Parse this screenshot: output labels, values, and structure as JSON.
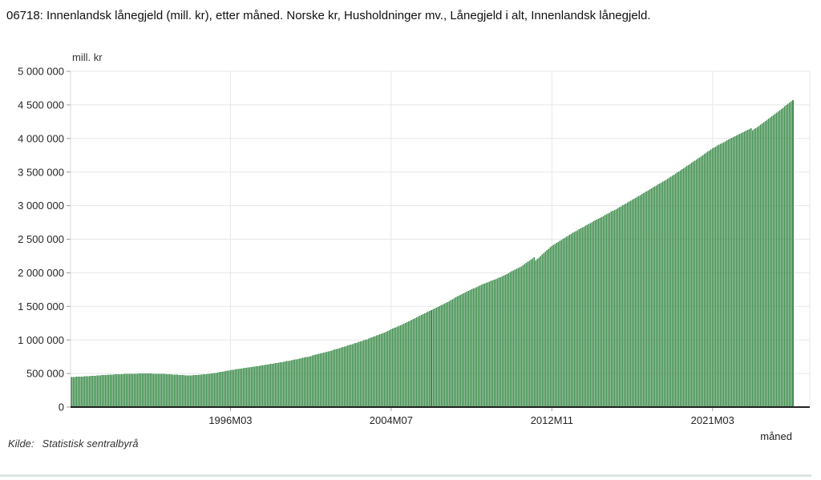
{
  "header": {
    "title": "06718: Innenlandsk lånegjeld (mill. kr), etter måned. Norske kr, Husholdninger mv., Lånegjeld i alt, Innenlandsk lånegjeld."
  },
  "footer": {
    "source_label": "Kilde:",
    "source_value": "Statistisk sentralbyrå"
  },
  "chart_data": {
    "type": "bar",
    "title": "06718: Innenlandsk lånegjeld (mill. kr), etter måned. Norske kr, Husholdninger mv., Lånegjeld i alt, Innenlandsk lånegjeld.",
    "unit_label": "mill. kr",
    "xlabel": "måned",
    "ylabel": "mill. kr",
    "ylim": [
      0,
      5000000
    ],
    "grid": true,
    "legend_position": "none",
    "bar_color": "#3c8c4b",
    "grid_color": "#e7e7e7",
    "axis_color": "#222222",
    "start_month": "1987M12",
    "end_month": "2025M05",
    "y_tick_values": [
      0,
      500000,
      1000000,
      1500000,
      2000000,
      2500000,
      3000000,
      3500000,
      4000000,
      4500000,
      5000000
    ],
    "y_tick_labels": [
      "0",
      "500 000",
      "1 000 000",
      "1 500 000",
      "2 000 000",
      "2 500 000",
      "3 000 000",
      "3 500 000",
      "4 000 000",
      "4 500 000",
      "5 000 000"
    ],
    "x_ticks": [
      {
        "label": "1996M03",
        "index": 99
      },
      {
        "label": "2004M07",
        "index": 199
      },
      {
        "label": "2012M11",
        "index": 299
      },
      {
        "label": "2021M03",
        "index": 399
      }
    ],
    "series": [
      {
        "name": "Innenlandsk lånegjeld, Husholdninger mv.",
        "values": [
          447000,
          448000,
          450000,
          451000,
          452000,
          454000,
          455000,
          456000,
          458000,
          459000,
          460000,
          462000,
          463000,
          465000,
          466000,
          468000,
          470000,
          471000,
          473000,
          475000,
          476000,
          478000,
          480000,
          481000,
          483000,
          484000,
          485000,
          487000,
          488000,
          489000,
          490000,
          491000,
          492000,
          494000,
          495000,
          496000,
          497000,
          497000,
          498000,
          498000,
          498000,
          498000,
          499000,
          499000,
          499000,
          499000,
          500000,
          500000,
          500000,
          499000,
          499000,
          498000,
          497000,
          496000,
          496000,
          495000,
          494000,
          493000,
          493000,
          492000,
          491000,
          489000,
          488000,
          486000,
          485000,
          483000,
          482000,
          480000,
          478000,
          477000,
          475000,
          474000,
          472000,
          473000,
          473000,
          474000,
          475000,
          475000,
          476000,
          479000,
          481000,
          484000,
          487000,
          489000,
          492000,
          495000,
          498000,
          501000,
          504000,
          507000,
          510000,
          514000,
          518000,
          523000,
          527000,
          531000,
          535000,
          540000,
          545000,
          550000,
          554000,
          557000,
          561000,
          564000,
          568000,
          571000,
          575000,
          578000,
          582000,
          585000,
          589000,
          592000,
          596000,
          600000,
          604000,
          607000,
          611000,
          615000,
          619000,
          623000,
          627000,
          630000,
          634000,
          638000,
          642000,
          646000,
          651000,
          655000,
          659000,
          663000,
          667000,
          671000,
          676000,
          680000,
          684000,
          688000,
          693000,
          698000,
          703000,
          708000,
          713000,
          718000,
          723000,
          728000,
          733000,
          738000,
          743000,
          748000,
          754000,
          760000,
          767000,
          773000,
          779000,
          785000,
          791000,
          797000,
          804000,
          810000,
          816000,
          822000,
          829000,
          836000,
          844000,
          851000,
          858000,
          865000,
          872000,
          879000,
          887000,
          894000,
          901000,
          908000,
          916000,
          924000,
          932000,
          939000,
          947000,
          955000,
          963000,
          971000,
          979000,
          986000,
          994000,
          1002000,
          1011000,
          1020000,
          1030000,
          1039000,
          1048000,
          1057000,
          1066000,
          1075000,
          1085000,
          1094000,
          1103000,
          1112000,
          1124000,
          1135000,
          1147000,
          1158000,
          1168000,
          1179000,
          1189000,
          1199000,
          1209000,
          1220000,
          1230000,
          1240000,
          1252000,
          1264000,
          1276000,
          1288000,
          1300000,
          1313000,
          1325000,
          1337000,
          1349000,
          1361000,
          1373000,
          1385000,
          1397000,
          1408000,
          1420000,
          1432000,
          1443000,
          1455000,
          1467000,
          1478000,
          1490000,
          1502000,
          1513000,
          1525000,
          1538000,
          1552000,
          1565000,
          1578000,
          1592000,
          1605000,
          1618000,
          1632000,
          1645000,
          1658000,
          1672000,
          1685000,
          1696000,
          1708000,
          1719000,
          1730000,
          1741000,
          1753000,
          1764000,
          1775000,
          1786000,
          1798000,
          1809000,
          1820000,
          1830000,
          1839000,
          1849000,
          1858000,
          1868000,
          1878000,
          1887000,
          1897000,
          1906000,
          1916000,
          1925000,
          1935000,
          1947000,
          1959000,
          1971000,
          1983000,
          1995000,
          2008000,
          2020000,
          2032000,
          2044000,
          2056000,
          2068000,
          2080000,
          2097000,
          2113000,
          2130000,
          2147000,
          2163000,
          2180000,
          2197000,
          2213000,
          2230000,
          2185000,
          2207000,
          2228000,
          2250000,
          2271000,
          2293000,
          2314000,
          2336000,
          2357000,
          2379000,
          2400000,
          2415000,
          2430000,
          2445000,
          2460000,
          2475000,
          2490000,
          2505000,
          2520000,
          2535000,
          2550000,
          2565000,
          2580000,
          2593000,
          2607000,
          2620000,
          2633000,
          2647000,
          2660000,
          2673000,
          2687000,
          2700000,
          2713000,
          2727000,
          2740000,
          2753000,
          2766000,
          2779000,
          2792000,
          2805000,
          2818000,
          2830000,
          2843000,
          2856000,
          2869000,
          2882000,
          2895000,
          2909000,
          2923000,
          2936000,
          2950000,
          2964000,
          2978000,
          2991000,
          3005000,
          3019000,
          3033000,
          3046000,
          3060000,
          3074000,
          3088000,
          3103000,
          3117000,
          3131000,
          3145000,
          3159000,
          3173000,
          3188000,
          3202000,
          3216000,
          3230000,
          3244000,
          3258000,
          3273000,
          3287000,
          3301000,
          3315000,
          3329000,
          3343000,
          3358000,
          3372000,
          3386000,
          3400000,
          3416000,
          3432000,
          3448000,
          3463000,
          3479000,
          3495000,
          3511000,
          3527000,
          3543000,
          3558000,
          3574000,
          3590000,
          3606000,
          3623000,
          3639000,
          3655000,
          3671000,
          3688000,
          3704000,
          3720000,
          3737000,
          3754000,
          3771000,
          3788000,
          3804000,
          3821000,
          3838000,
          3855000,
          3868000,
          3881000,
          3894000,
          3907000,
          3920000,
          3933000,
          3945000,
          3958000,
          3971000,
          3984000,
          3997000,
          4010000,
          4022000,
          4034000,
          4046000,
          4058000,
          4070000,
          4083000,
          4095000,
          4107000,
          4119000,
          4131000,
          4143000,
          4155000,
          4120000,
          4138000,
          4155000,
          4173000,
          4191000,
          4208000,
          4226000,
          4244000,
          4262000,
          4279000,
          4297000,
          4315000,
          4332000,
          4350000,
          4368000,
          4387000,
          4405000,
          4423000,
          4442000,
          4460000,
          4478000,
          4497000,
          4515000,
          4533000,
          4552000,
          4570000
        ]
      }
    ]
  }
}
